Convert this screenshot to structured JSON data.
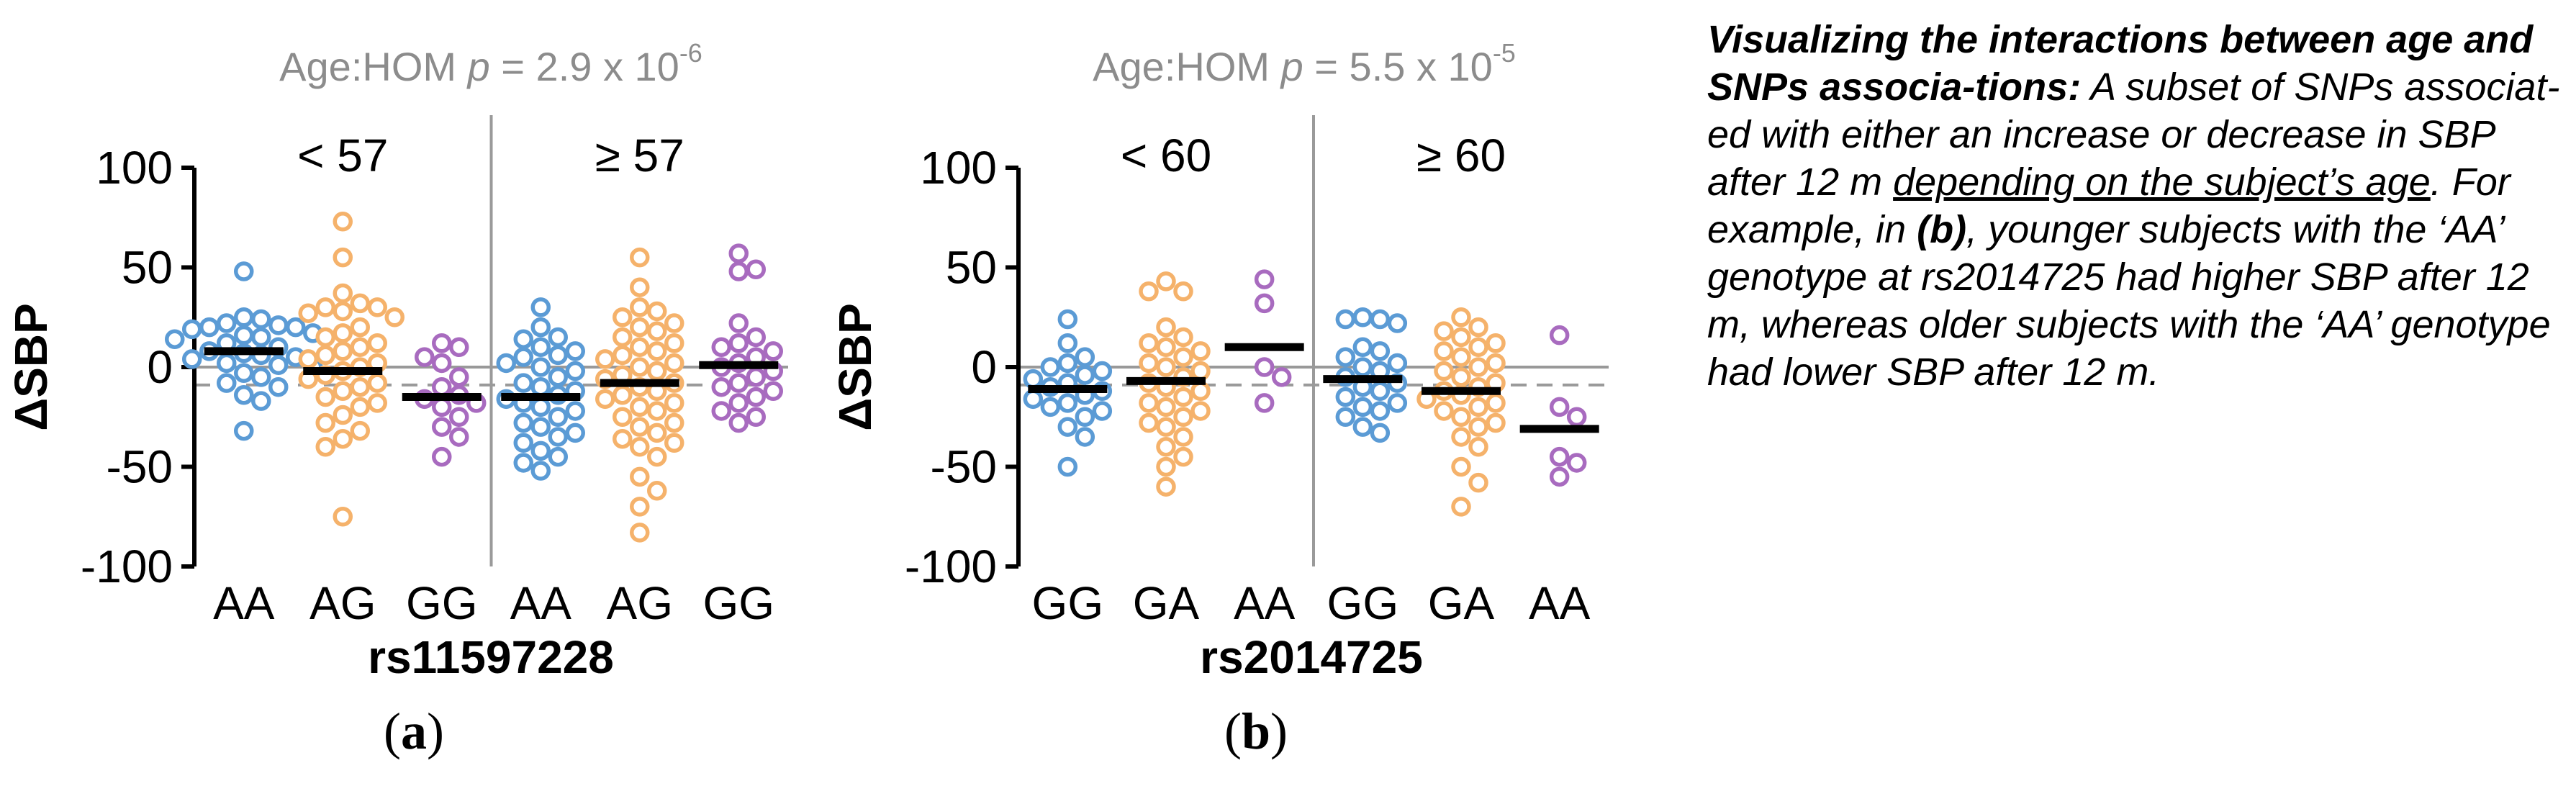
{
  "colors": {
    "AA_left": "#5b9bd5",
    "G2": "#f5b26b",
    "G3": "#a86bbf"
  },
  "chart_data": [
    {
      "type": "scatter",
      "panel_label": "a",
      "title_prefix": "Age:HOM ",
      "title_p": "p",
      "title_rest": " = 2.9 x 10",
      "title_exp": "-6",
      "ylabel": "ΔSBP",
      "xlabel": "rs11597228",
      "ylim": [
        -100,
        100
      ],
      "yticks": [
        100,
        50,
        0,
        -50,
        -100
      ],
      "reference_line": -9,
      "age_groups": [
        "< 57",
        "≥ 57"
      ],
      "genotypes": [
        "AA",
        "AG",
        "GG",
        "AA",
        "AG",
        "GG"
      ],
      "groups": [
        {
          "age": "< 57",
          "genotype": "AA",
          "color": "#5b9bd5",
          "median": 8,
          "values": [
            48,
            25,
            24,
            22,
            21,
            20,
            20,
            19,
            17,
            16,
            15,
            14,
            12,
            10,
            8,
            7,
            6,
            5,
            4,
            2,
            1,
            0,
            -3,
            -5,
            -8,
            -10,
            -14,
            -17,
            -32
          ]
        },
        {
          "age": "< 57",
          "genotype": "AG",
          "color": "#f5b26b",
          "median": -2,
          "values": [
            73,
            55,
            37,
            32,
            30,
            30,
            28,
            27,
            25,
            20,
            17,
            15,
            12,
            10,
            8,
            6,
            4,
            2,
            0,
            -2,
            -4,
            -6,
            -8,
            -10,
            -12,
            -15,
            -18,
            -20,
            -24,
            -28,
            -32,
            -36,
            -40,
            -75
          ]
        },
        {
          "age": "< 57",
          "genotype": "GG",
          "color": "#a86bbf",
          "median": -15,
          "values": [
            12,
            10,
            5,
            2,
            -5,
            -10,
            -14,
            -16,
            -18,
            -20,
            -25,
            -30,
            -35,
            -45
          ]
        },
        {
          "age": "≥ 57",
          "genotype": "AA",
          "color": "#5b9bd5",
          "median": -15,
          "values": [
            30,
            20,
            15,
            14,
            10,
            8,
            6,
            5,
            2,
            0,
            -2,
            -5,
            -8,
            -10,
            -12,
            -14,
            -16,
            -18,
            -20,
            -22,
            -25,
            -28,
            -30,
            -33,
            -35,
            -38,
            -42,
            -45,
            -48,
            -52
          ]
        },
        {
          "age": "≥ 57",
          "genotype": "AG",
          "color": "#f5b26b",
          "median": -8,
          "values": [
            55,
            40,
            30,
            28,
            25,
            22,
            20,
            18,
            15,
            12,
            10,
            8,
            6,
            4,
            2,
            0,
            -2,
            -4,
            -6,
            -8,
            -10,
            -12,
            -14,
            -16,
            -18,
            -20,
            -22,
            -25,
            -28,
            -30,
            -33,
            -36,
            -38,
            -40,
            -45,
            -55,
            -62,
            -70,
            -83
          ]
        },
        {
          "age": "≥ 57",
          "genotype": "GG",
          "color": "#a86bbf",
          "median": 1,
          "values": [
            57,
            49,
            48,
            22,
            15,
            12,
            10,
            8,
            5,
            2,
            0,
            -2,
            -5,
            -8,
            -10,
            -12,
            -15,
            -18,
            -22,
            -25,
            -28
          ]
        }
      ]
    },
    {
      "type": "scatter",
      "panel_label": "b",
      "title_prefix": "Age:HOM ",
      "title_p": "p",
      "title_rest": " = 5.5 x 10",
      "title_exp": "-5",
      "ylabel": "ΔSBP",
      "xlabel": "rs2014725",
      "ylim": [
        -100,
        100
      ],
      "yticks": [
        100,
        50,
        0,
        -50,
        -100
      ],
      "reference_line": -9,
      "age_groups": [
        "< 60",
        "≥ 60"
      ],
      "genotypes": [
        "GG",
        "GA",
        "AA",
        "GG",
        "GA",
        "AA"
      ],
      "groups": [
        {
          "age": "< 60",
          "genotype": "GG",
          "color": "#5b9bd5",
          "median": -11,
          "values": [
            24,
            12,
            5,
            2,
            0,
            -2,
            -4,
            -6,
            -8,
            -10,
            -12,
            -14,
            -16,
            -18,
            -20,
            -22,
            -25,
            -30,
            -35,
            -50
          ]
        },
        {
          "age": "< 60",
          "genotype": "GA",
          "color": "#f5b26b",
          "median": -7,
          "values": [
            43,
            38,
            38,
            20,
            15,
            12,
            10,
            8,
            5,
            2,
            0,
            -2,
            -5,
            -8,
            -10,
            -12,
            -15,
            -18,
            -20,
            -22,
            -25,
            -28,
            -30,
            -35,
            -40,
            -45,
            -50,
            -60
          ]
        },
        {
          "age": "< 60",
          "genotype": "AA",
          "color": "#a86bbf",
          "median": 10,
          "values": [
            44,
            32,
            0,
            -5,
            -18
          ]
        },
        {
          "age": "≥ 60",
          "genotype": "GG",
          "color": "#5b9bd5",
          "median": -6,
          "values": [
            25,
            24,
            24,
            22,
            10,
            8,
            5,
            2,
            0,
            -2,
            -5,
            -8,
            -10,
            -12,
            -15,
            -18,
            -20,
            -22,
            -25,
            -30,
            -33
          ]
        },
        {
          "age": "≥ 60",
          "genotype": "GA",
          "color": "#f5b26b",
          "median": -12,
          "values": [
            25,
            20,
            18,
            15,
            12,
            10,
            8,
            5,
            2,
            0,
            -2,
            -5,
            -8,
            -10,
            -12,
            -14,
            -16,
            -18,
            -20,
            -22,
            -25,
            -28,
            -30,
            -35,
            -40,
            -50,
            -58,
            -70
          ]
        },
        {
          "age": "≥ 60",
          "genotype": "AA",
          "color": "#a86bbf",
          "median": -31,
          "values": [
            16,
            -20,
            -25,
            -45,
            -48,
            -55
          ]
        }
      ]
    }
  ],
  "caption": {
    "lead": "Visualizing the interactions between age and SNPs associa-tions:",
    "t1": " A subset of SNPs associat-ed with either an increase or decrease in SBP after 12 m ",
    "underlined": "depending on the subject’s age",
    "t2": ". For example, in ",
    "bold_ref": "(b)",
    "t3": ", younger subjects with the ‘AA’ genotype at rs2014725 had higher SBP after 12 m, whereas older subjects with the ‘AA’ genotype had lower SBP after 12 m."
  }
}
